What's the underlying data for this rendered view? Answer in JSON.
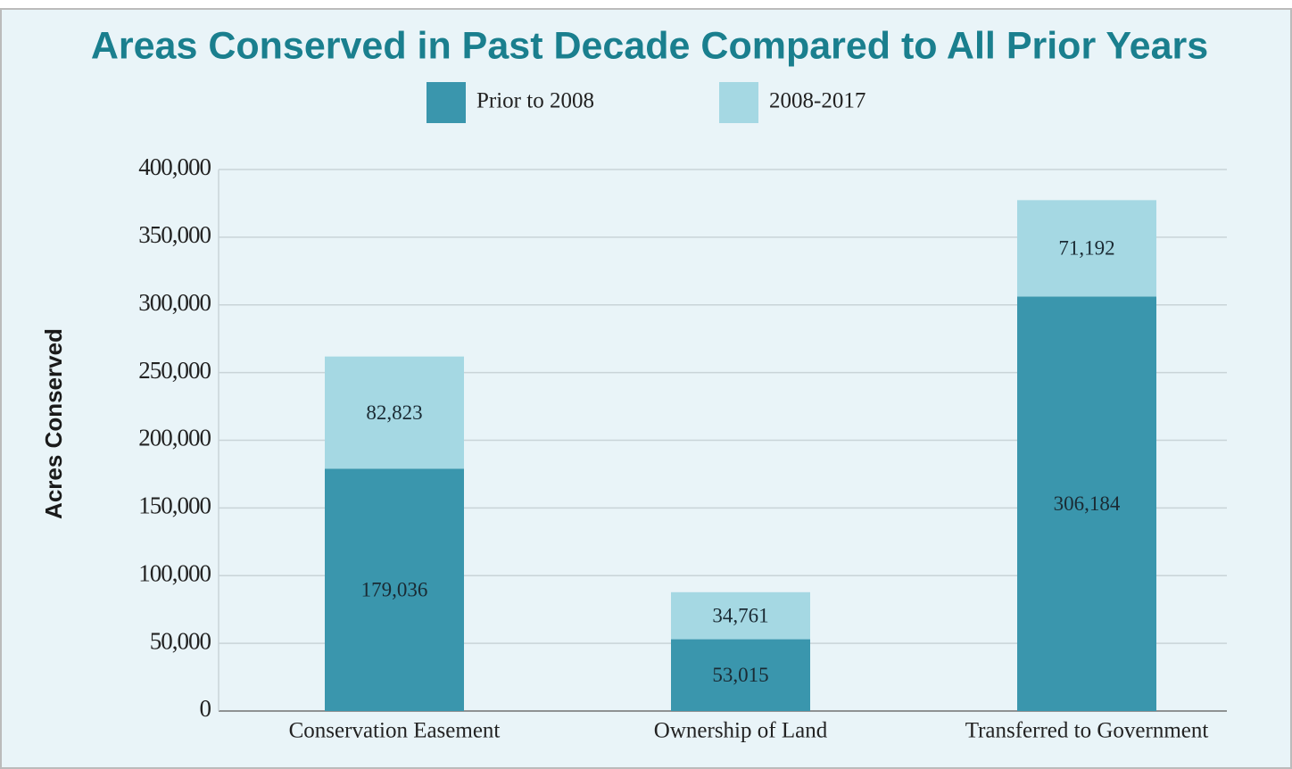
{
  "chart_data": {
    "type": "stacked_bar",
    "title": "Areas Conserved in Past Decade Compared to All Prior Years",
    "y_label": "Acres Conserved",
    "categories": [
      "Conservation Easement",
      "Ownership of Land",
      "Transferred to Government"
    ],
    "series": [
      {
        "name": "Prior to 2008",
        "color": "#3a96ad",
        "values": [
          179036,
          53015,
          306184
        ],
        "value_labels": [
          "179,036",
          "53,015",
          "306,184"
        ]
      },
      {
        "name": "2008-2017",
        "color": "#a5d8e3",
        "values": [
          82823,
          34761,
          71192
        ],
        "value_labels": [
          "82,823",
          "34,761",
          "71,192"
        ]
      }
    ],
    "ylim": [
      0,
      400000
    ],
    "yticks": [
      0,
      {
        "value": 50000,
        "label": "50,000"
      },
      {
        "value": 100000,
        "label": "100,000"
      },
      {
        "value": 150000,
        "label": "150,000"
      },
      {
        "value": 200000,
        "label": "200,000"
      },
      {
        "value": 250000,
        "label": "250,000"
      },
      {
        "value": 300000,
        "label": "300,000"
      },
      {
        "value": 350000,
        "label": "350,000"
      },
      {
        "value": 400000,
        "label": "400,000"
      }
    ],
    "grid": true,
    "legend": "top"
  }
}
